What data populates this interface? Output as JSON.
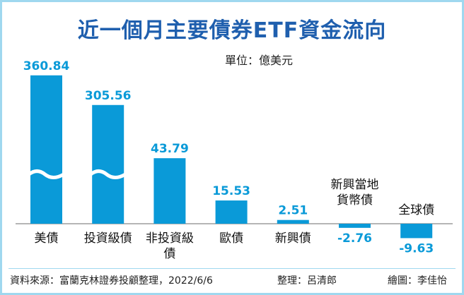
{
  "chart_data": {
    "type": "bar",
    "title": "近一個月主要債券ETF資金流向",
    "unit": "單位：億美元",
    "categories": [
      "美債",
      "投資級債",
      "非投資級債",
      "歐債",
      "新興債",
      "新興當地貨幣債",
      "全球債"
    ],
    "category_lines": [
      [
        "美債"
      ],
      [
        "投資級債"
      ],
      [
        "非投資級",
        "債"
      ],
      [
        "歐債"
      ],
      [
        "新興債"
      ],
      [
        "新興當地",
        "貨幣債"
      ],
      [
        "全球債"
      ]
    ],
    "values": [
      360.84,
      305.56,
      43.79,
      15.53,
      2.51,
      -2.76,
      -9.63
    ],
    "value_labels": [
      "360.84",
      "305.56",
      "43.79",
      "15.53",
      "2.51",
      "-2.76",
      "-9.63"
    ],
    "broken_axis": [
      true,
      true,
      false,
      false,
      false,
      false,
      false
    ],
    "bar_color": "#0a9ad8",
    "label_color": "#0a9ad8",
    "title_color": "#1f5fae"
  },
  "footer": {
    "source": "資料來源：富蘭克林證券投顧整理，2022/6/6",
    "editor": "整理：呂清郎",
    "artist": "繪圖：李佳怡"
  }
}
